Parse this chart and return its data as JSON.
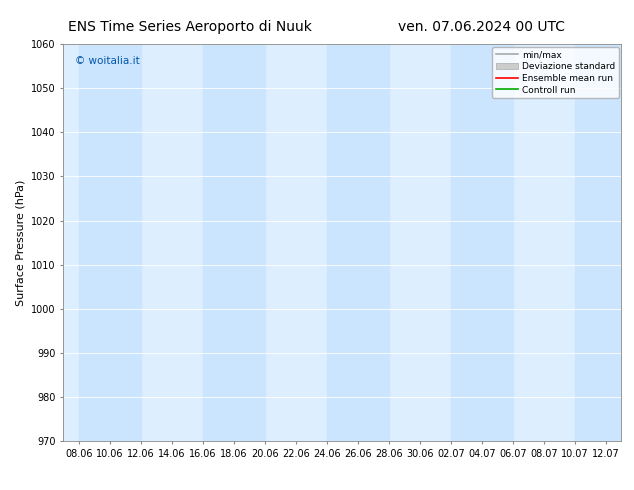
{
  "title_left": "ENS Time Series Aeroporto di Nuuk",
  "title_right": "ven. 07.06.2024 00 UTC",
  "ylabel": "Surface Pressure (hPa)",
  "ylim": [
    970,
    1060
  ],
  "yticks": [
    970,
    980,
    990,
    1000,
    1010,
    1020,
    1030,
    1040,
    1050,
    1060
  ],
  "xtick_labels": [
    "08.06",
    "10.06",
    "12.06",
    "14.06",
    "16.06",
    "18.06",
    "20.06",
    "22.06",
    "24.06",
    "26.06",
    "28.06",
    "30.06",
    "02.07",
    "04.07",
    "06.07",
    "08.07",
    "10.07",
    "12.07"
  ],
  "background_color": "#ffffff",
  "plot_bg_color": "#ddeeff",
  "shaded_columns_color": "#cce5ff",
  "watermark": "© woitalia.it",
  "watermark_color": "#0055aa",
  "legend_items": [
    "min/max",
    "Deviazione standard",
    "Ensemble mean run",
    "Controll run"
  ],
  "legend_colors": [
    "#aaaaaa",
    "#cccccc",
    "#ff0000",
    "#00aa00"
  ],
  "title_fontsize": 10,
  "axis_fontsize": 8,
  "tick_fontsize": 7
}
